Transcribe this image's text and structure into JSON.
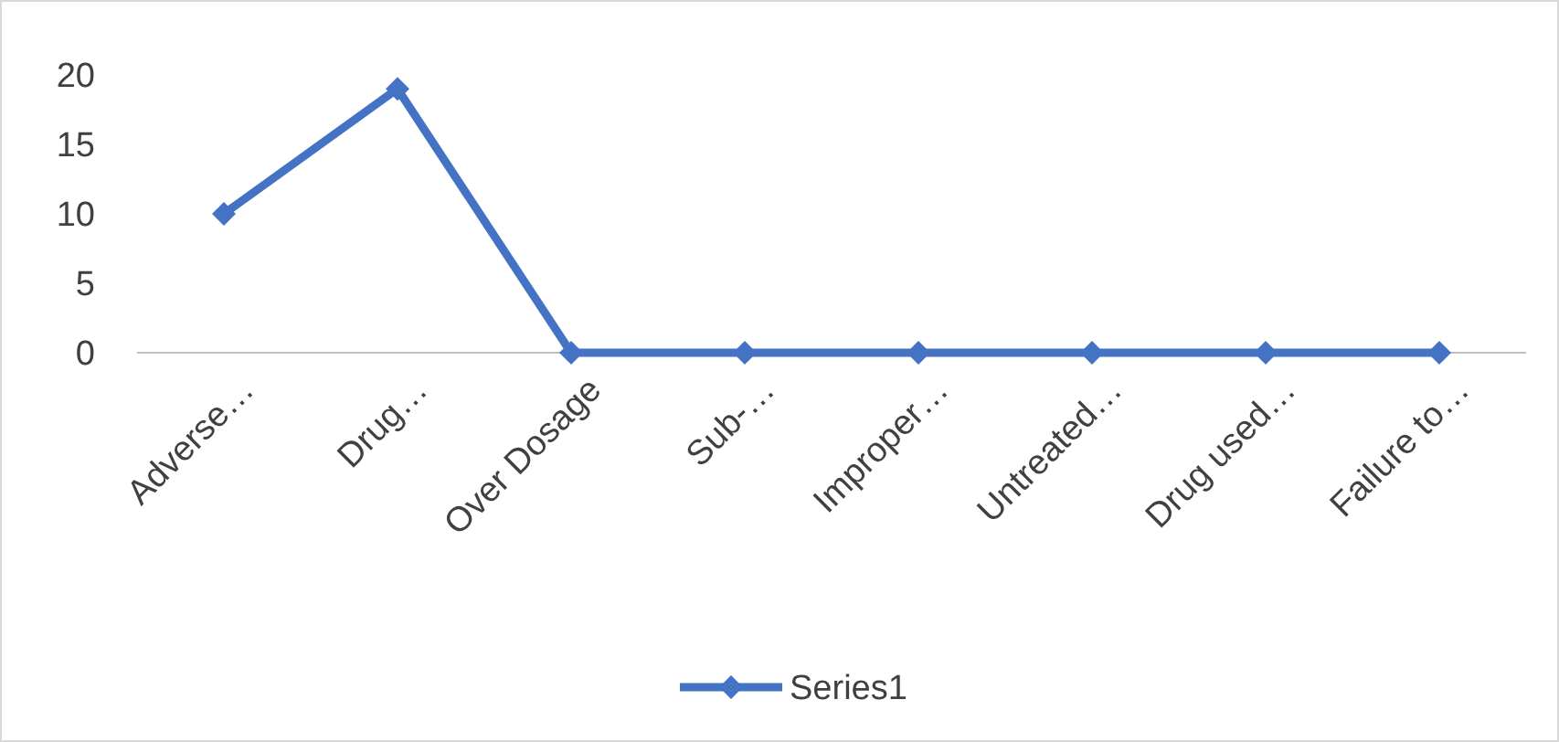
{
  "chart_data": {
    "type": "line",
    "categories": [
      "Adverse…",
      "Drug…",
      "Over Dosage",
      "Sub-…",
      "Improper…",
      "Untreated…",
      "Drug used…",
      "Failure to…"
    ],
    "series": [
      {
        "name": "Series1",
        "color": "#4472c4",
        "values": [
          10,
          19,
          0,
          0,
          0,
          0,
          0,
          0
        ]
      }
    ],
    "ylim": [
      0,
      20
    ],
    "yticks": [
      0,
      5,
      10,
      15,
      20
    ],
    "grid": false,
    "legend": "bottom",
    "marker": "diamond",
    "line_style": "solid"
  }
}
